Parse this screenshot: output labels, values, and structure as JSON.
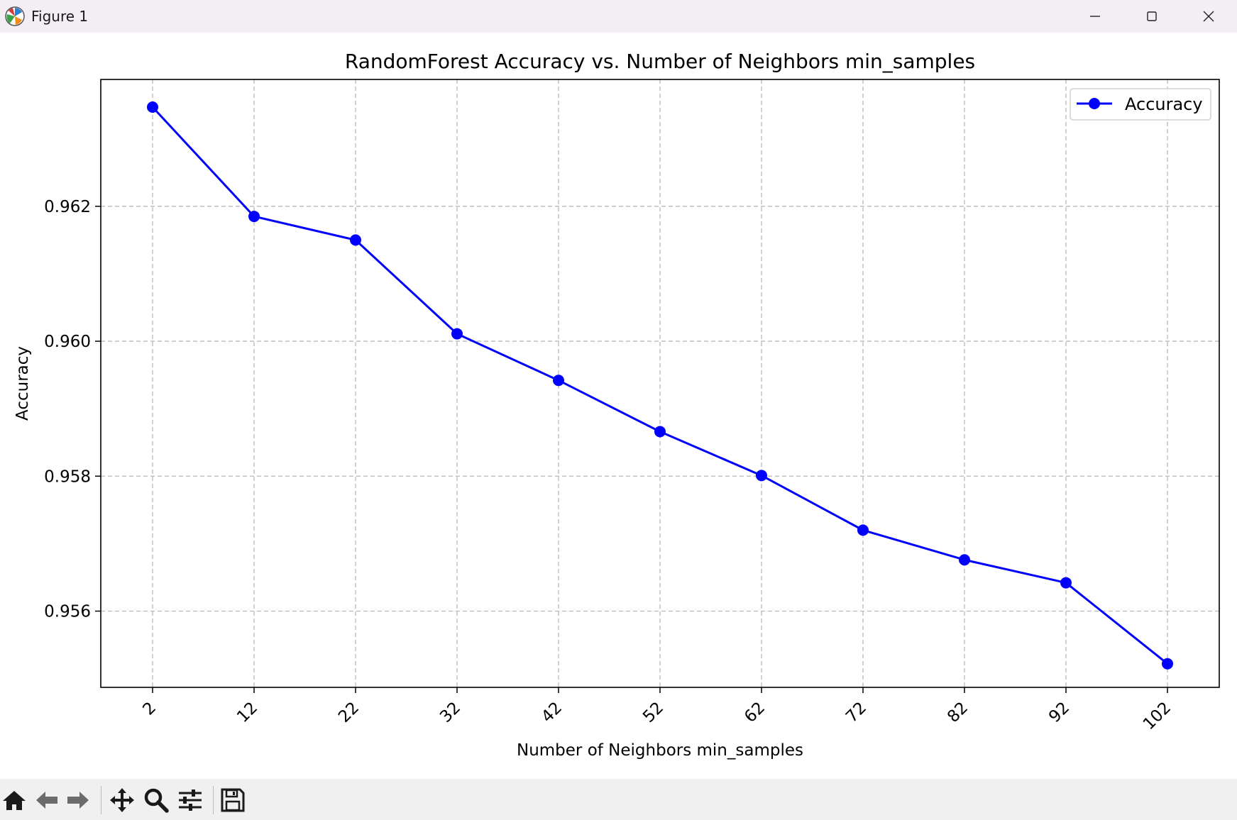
{
  "window": {
    "title": "Figure 1",
    "app_icon": "matplotlib-icon",
    "controls": [
      "minimize-icon",
      "maximize-icon",
      "close-icon"
    ]
  },
  "toolbar": {
    "buttons": [
      "home-icon",
      "back-arrow-icon",
      "forward-arrow-icon",
      "pan-icon",
      "zoom-icon",
      "configure-subplots-icon",
      "save-icon"
    ]
  },
  "chart_data": {
    "type": "line",
    "title": "RandomForest Accuracy vs. Number of Neighbors min_samples",
    "xlabel": "Number of Neighbors min_samples",
    "ylabel": "Accuracy",
    "x": [
      2,
      12,
      22,
      32,
      42,
      52,
      62,
      72,
      82,
      92,
      102
    ],
    "x_tick_labels": [
      "2",
      "12",
      "22",
      "32",
      "42",
      "52",
      "62",
      "72",
      "82",
      "92",
      "102"
    ],
    "y_ticks": [
      0.956,
      0.958,
      0.96,
      0.962
    ],
    "y_tick_labels": [
      "0.956",
      "0.958",
      "0.960",
      "0.962"
    ],
    "ylim": [
      0.95487,
      0.96388
    ],
    "series": [
      {
        "name": "Accuracy",
        "color": "#0000ff",
        "marker": "circle",
        "values": [
          0.96347,
          0.96185,
          0.9615,
          0.96011,
          0.95942,
          0.95866,
          0.95801,
          0.9572,
          0.95676,
          0.95642,
          0.95522
        ]
      }
    ],
    "grid": true,
    "grid_style": "dashed",
    "legend_position": "top-right",
    "x_tick_rotation": 45
  }
}
